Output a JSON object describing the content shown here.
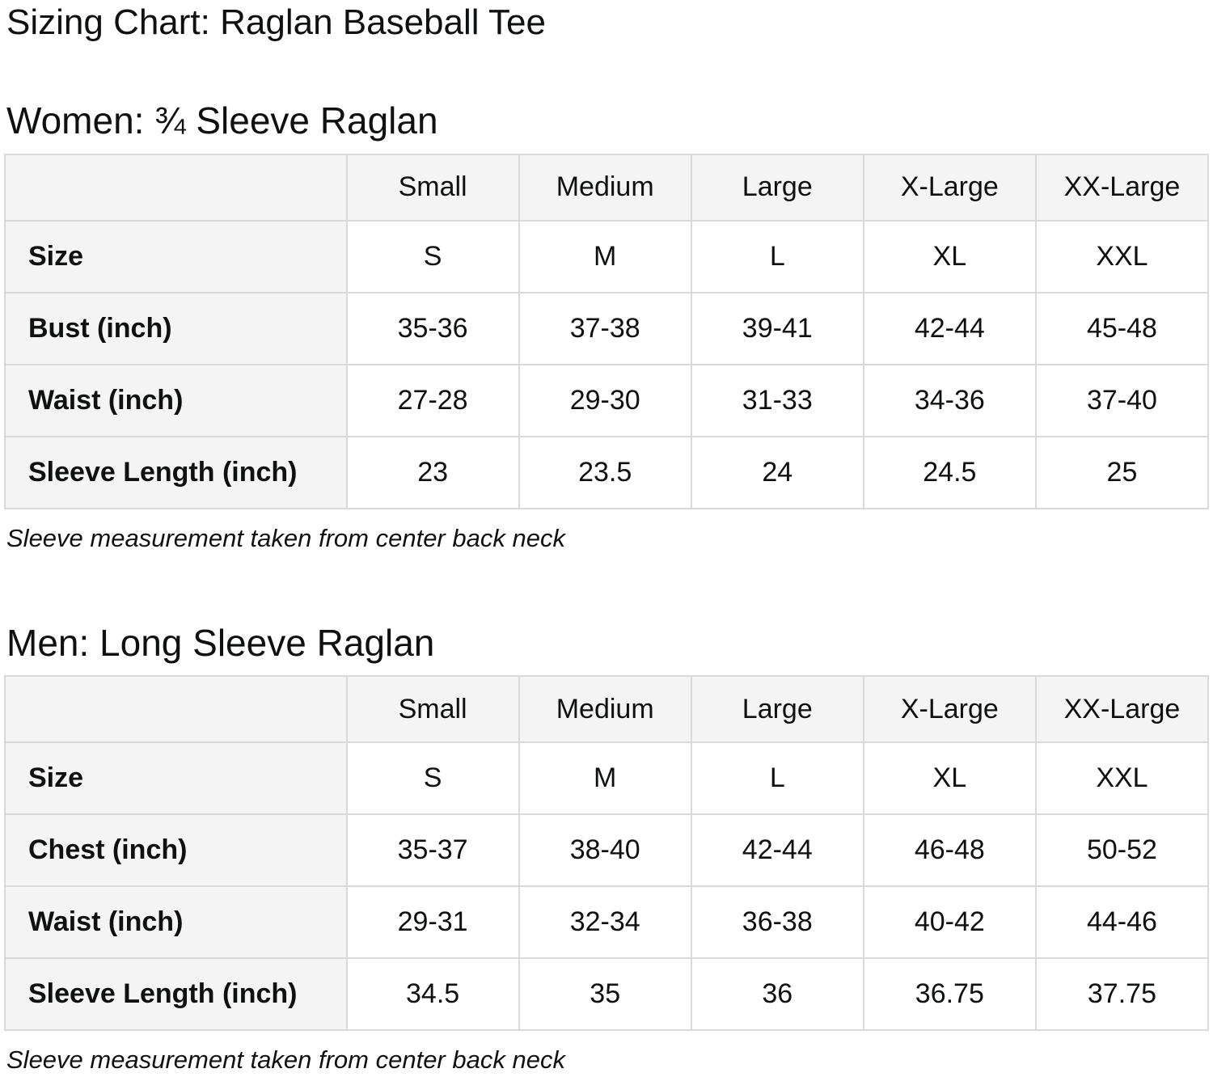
{
  "title": "Sizing Chart: Raglan Baseball Tee",
  "colors": {
    "text": "#0f1111",
    "table_border": "#d9d9d9",
    "header_cell_bg": "#f4f4f4",
    "value_cell_bg": "#ffffff",
    "page_bg": "#ffffff"
  },
  "sections": [
    {
      "id": "women",
      "heading": "Women: ¾ Sleeve Raglan",
      "note": "Sleeve measurement taken from center back neck",
      "table": {
        "column_headers": [
          "",
          "Small",
          "Medium",
          "Large",
          "X-Large",
          "XX-Large"
        ],
        "rows": [
          {
            "label": "Size",
            "values": [
              "S",
              "M",
              "L",
              "XL",
              "XXL"
            ]
          },
          {
            "label": "Bust (inch)",
            "values": [
              "35-36",
              "37-38",
              "39-41",
              "42-44",
              "45-48"
            ]
          },
          {
            "label": "Waist (inch)",
            "values": [
              "27-28",
              "29-30",
              "31-33",
              "34-36",
              "37-40"
            ]
          },
          {
            "label": "Sleeve Length (inch)",
            "values": [
              "23",
              "23.5",
              "24",
              "24.5",
              "25"
            ]
          }
        ]
      }
    },
    {
      "id": "men",
      "heading": "Men: Long Sleeve Raglan",
      "note": "Sleeve measurement taken from center back neck",
      "table": {
        "column_headers": [
          "",
          "Small",
          "Medium",
          "Large",
          "X-Large",
          "XX-Large"
        ],
        "rows": [
          {
            "label": "Size",
            "values": [
              "S",
              "M",
              "L",
              "XL",
              "XXL"
            ]
          },
          {
            "label": "Chest (inch)",
            "values": [
              "35-37",
              "38-40",
              "42-44",
              "46-48",
              "50-52"
            ]
          },
          {
            "label": "Waist (inch)",
            "values": [
              "29-31",
              "32-34",
              "36-38",
              "40-42",
              "44-46"
            ]
          },
          {
            "label": "Sleeve Length (inch)",
            "values": [
              "34.5",
              "35",
              "36",
              "36.75",
              "37.75"
            ]
          }
        ]
      }
    }
  ]
}
